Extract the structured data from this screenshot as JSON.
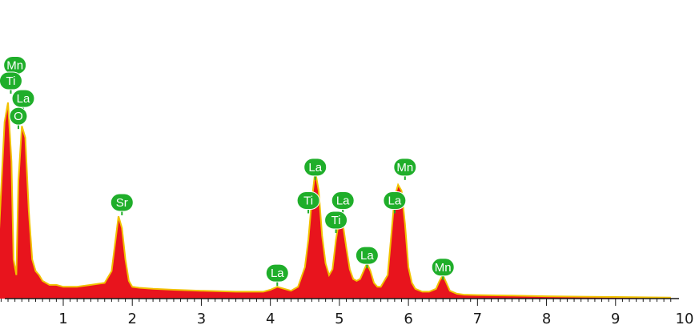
{
  "chart_data": {
    "type": "area",
    "title": "",
    "xlabel": "",
    "ylabel": "",
    "xlim": [
      0,
      10
    ],
    "ylim": [
      0,
      100
    ],
    "grid": false,
    "x_ticks": [
      "1",
      "2",
      "3",
      "4",
      "5",
      "6",
      "7",
      "8",
      "9",
      "10"
    ],
    "colors": {
      "fill": "#e8141d",
      "edge": "#f2c200",
      "label_bg": "#1fae2a",
      "label_text": "#ffffff"
    },
    "spectrum": {
      "x": [
        0.0,
        0.05,
        0.1,
        0.15,
        0.2,
        0.25,
        0.28,
        0.32,
        0.35,
        0.4,
        0.45,
        0.5,
        0.55,
        0.6,
        0.65,
        0.7,
        0.75,
        0.8,
        0.85,
        0.9,
        1.0,
        1.2,
        1.4,
        1.6,
        1.7,
        1.75,
        1.8,
        1.85,
        1.9,
        1.95,
        2.0,
        2.1,
        2.3,
        2.6,
        3.0,
        3.5,
        3.9,
        4.0,
        4.1,
        4.2,
        4.3,
        4.4,
        4.5,
        4.55,
        4.6,
        4.65,
        4.7,
        4.75,
        4.8,
        4.85,
        4.9,
        4.95,
        5.0,
        5.05,
        5.1,
        5.15,
        5.2,
        5.25,
        5.3,
        5.35,
        5.4,
        5.45,
        5.5,
        5.55,
        5.6,
        5.7,
        5.75,
        5.8,
        5.85,
        5.9,
        5.95,
        6.0,
        6.05,
        6.1,
        6.2,
        6.3,
        6.4,
        6.45,
        6.5,
        6.55,
        6.6,
        6.7,
        6.8,
        7.0,
        7.5,
        8.0,
        8.5,
        9.0,
        9.5,
        9.8
      ],
      "y": [
        0,
        20,
        55,
        90,
        100,
        70,
        20,
        12,
        60,
        88,
        82,
        45,
        20,
        14,
        12,
        9,
        8,
        7,
        7,
        7,
        6,
        6,
        7,
        8,
        14,
        28,
        42,
        36,
        20,
        9,
        6,
        5.5,
        5,
        4.5,
        4,
        3.5,
        3.5,
        4.5,
        6,
        5,
        4,
        6,
        16,
        30,
        50,
        65,
        55,
        32,
        18,
        12,
        15,
        30,
        41,
        38,
        26,
        15,
        10,
        9,
        10,
        14,
        18,
        14,
        8,
        6,
        6,
        12,
        32,
        52,
        58,
        55,
        38,
        16,
        8,
        5,
        3.5,
        3.5,
        5,
        9,
        12,
        8,
        4,
        2.5,
        2,
        1.8,
        1.5,
        1.2,
        1,
        0.8,
        0.6,
        0.5
      ]
    },
    "peak_labels": [
      {
        "text": "Mn",
        "x": 0.3,
        "y": 119
      },
      {
        "text": "Ti",
        "x": 0.24,
        "y": 111
      },
      {
        "text": "La",
        "x": 0.42,
        "y": 102
      },
      {
        "text": "O",
        "x": 0.35,
        "y": 93
      },
      {
        "text": "Sr",
        "x": 1.85,
        "y": 49
      },
      {
        "text": "La",
        "x": 4.1,
        "y": 13
      },
      {
        "text": "La",
        "x": 4.65,
        "y": 67
      },
      {
        "text": "Ti",
        "x": 4.55,
        "y": 50
      },
      {
        "text": "La",
        "x": 5.05,
        "y": 50
      },
      {
        "text": "Ti",
        "x": 4.95,
        "y": 40
      },
      {
        "text": "La",
        "x": 5.4,
        "y": 22
      },
      {
        "text": "Mn",
        "x": 5.95,
        "y": 67
      },
      {
        "text": "La",
        "x": 5.8,
        "y": 50
      },
      {
        "text": "Mn",
        "x": 6.5,
        "y": 16
      }
    ]
  }
}
